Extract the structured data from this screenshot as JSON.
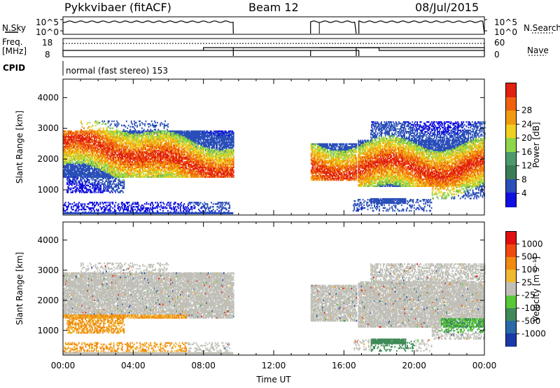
{
  "header": {
    "station": "Pykkvibaer (fitACF)",
    "beam": "Beam 12",
    "date": "08/Jul/2015"
  },
  "panels": {
    "nsky_label": "N.Sky",
    "nsearch_label": "N.Search",
    "noise_ticks": [
      "10^5",
      "10^0"
    ],
    "freq_label_line1": "Freq.",
    "freq_label_line2": "[MHz]",
    "freq_ticks": [
      "18",
      "8"
    ],
    "nave_label": "Nave",
    "nave_ticks": [
      "60",
      "0"
    ],
    "cpid_label": "CPID",
    "cpid_text": "normal (fast stereo) 153"
  },
  "colors": {
    "power_scale": [
      "#1010e0",
      "#2a4fb8",
      "#3a7d55",
      "#4c9a6c",
      "#8fd64a",
      "#f0d020",
      "#f09a10",
      "#f06010",
      "#e02010"
    ],
    "velocity_scale": [
      "#e01010",
      "#f04a10",
      "#f08a10",
      "#f0b830",
      "#c0c0b8",
      "#58c838",
      "#3f8a58",
      "#2a6aa8",
      "#1a3aa8"
    ]
  },
  "chart_data": [
    {
      "type": "heatmap",
      "title": "Power",
      "ylabel": "Slant Range [km]",
      "ylim": [
        180,
        4600
      ],
      "yticks": [
        1000,
        2000,
        3000,
        4000
      ],
      "colorbar_label": "Power [dB]",
      "colorbar_ticks": [
        "4",
        "8",
        "12",
        "16",
        "20",
        "24",
        "28"
      ]
    },
    {
      "type": "heatmap",
      "title": "Velocity",
      "ylabel": "Slant Range [km]",
      "xlabel": "Time UT",
      "ylim": [
        180,
        4600
      ],
      "yticks": [
        1000,
        2000,
        3000,
        4000
      ],
      "xticks": [
        "00:00",
        "04:00",
        "08:00",
        "12:00",
        "16:00",
        "20:00",
        "00:00"
      ],
      "xlim_hours": [
        0,
        24
      ],
      "colorbar_label": "Velocity [m s⁻¹]",
      "colorbar_ticks": [
        "1000",
        "500",
        "100",
        "25",
        "-25",
        "-100",
        "-500",
        "-1000"
      ]
    }
  ]
}
